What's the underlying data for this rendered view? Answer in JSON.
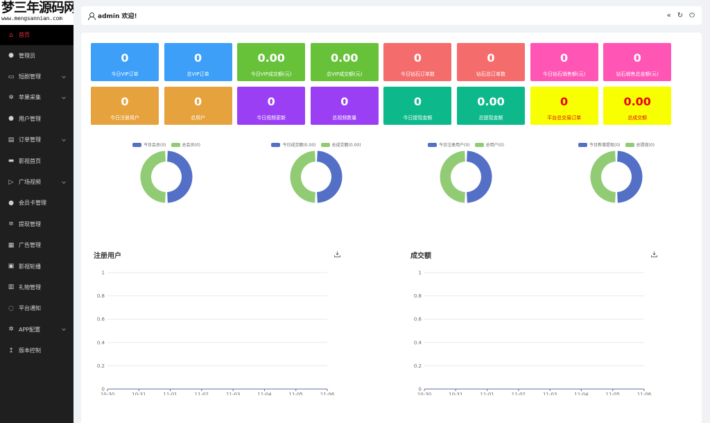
{
  "logo": {
    "line1": "梦三年源码网",
    "line2": "www.mengsannian.com"
  },
  "sidebar": {
    "items": [
      {
        "label": "首页",
        "icon": "home-icon",
        "glyph": "⌂",
        "active": true,
        "caret": false
      },
      {
        "label": "管理员",
        "icon": "user-icon",
        "glyph": "●",
        "active": false,
        "caret": false
      },
      {
        "label": "短剧管理",
        "icon": "video-icon",
        "glyph": "▭",
        "active": false,
        "caret": true
      },
      {
        "label": "苹果采集",
        "icon": "gear-icon",
        "glyph": "✲",
        "active": false,
        "caret": true
      },
      {
        "label": "用户管理",
        "icon": "user-icon",
        "glyph": "●",
        "active": false,
        "caret": false
      },
      {
        "label": "订单管理",
        "icon": "document-icon",
        "glyph": "▤",
        "active": false,
        "caret": true
      },
      {
        "label": "影视首页",
        "icon": "car-icon",
        "glyph": "▬",
        "active": false,
        "caret": false
      },
      {
        "label": "广场视频",
        "icon": "play-icon",
        "glyph": "▷",
        "active": false,
        "caret": true
      },
      {
        "label": "会员卡管理",
        "icon": "user-icon",
        "glyph": "●",
        "active": false,
        "caret": false
      },
      {
        "label": "提现管理",
        "icon": "database-icon",
        "glyph": "≡",
        "active": false,
        "caret": false
      },
      {
        "label": "广告管理",
        "icon": "chart-icon",
        "glyph": "▦",
        "active": false,
        "caret": false
      },
      {
        "label": "影视轮播",
        "icon": "image-icon",
        "glyph": "▣",
        "active": false,
        "caret": false
      },
      {
        "label": "礼物管理",
        "icon": "gift-icon",
        "glyph": "▥",
        "active": false,
        "caret": false
      },
      {
        "label": "平台通知",
        "icon": "message-icon",
        "glyph": "◌",
        "active": false,
        "caret": false
      },
      {
        "label": "APP配置",
        "icon": "settings-icon",
        "glyph": "✲",
        "active": false,
        "caret": true
      },
      {
        "label": "版本控制",
        "icon": "upload-icon",
        "glyph": "↥",
        "active": false,
        "caret": false
      }
    ]
  },
  "header": {
    "welcome": "admin 欢迎!",
    "tools": [
      {
        "name": "collapse-icon",
        "glyph": "«"
      },
      {
        "name": "refresh-icon",
        "glyph": "↻"
      },
      {
        "name": "power-icon",
        "glyph": "⏻"
      }
    ]
  },
  "stats": {
    "row1": [
      {
        "value": "0",
        "label": "今日VIP订单",
        "color": "#3d9ff8"
      },
      {
        "value": "0",
        "label": "总VIP订单",
        "color": "#3d9ff8"
      },
      {
        "value": "0.00",
        "label": "今日VIP成交额(元)",
        "color": "#67c23a"
      },
      {
        "value": "0.00",
        "label": "总VIP成交额(元)",
        "color": "#67c23a"
      },
      {
        "value": "0",
        "label": "今日钻石订单数",
        "color": "#f56c6c"
      },
      {
        "value": "0",
        "label": "钻石总订单数",
        "color": "#f56c6c"
      },
      {
        "value": "0",
        "label": "今日钻石销售额(元)",
        "color": "#ff55b4"
      },
      {
        "value": "0",
        "label": "钻石销售总金额(元)",
        "color": "#ff55b4"
      }
    ],
    "row2": [
      {
        "value": "0",
        "label": "今日注册用户",
        "color": "#e6a23c"
      },
      {
        "value": "0",
        "label": "总用户",
        "color": "#e6a23c"
      },
      {
        "value": "0",
        "label": "今日视频更新",
        "color": "#9b3ff5"
      },
      {
        "value": "0",
        "label": "总视频数量",
        "color": "#9b3ff5"
      },
      {
        "value": "0",
        "label": "今日提现金额",
        "color": "#0db98a"
      },
      {
        "value": "0.00",
        "label": "总提现金额",
        "color": "#0db98a"
      },
      {
        "value": "0",
        "label": "平台总交易订单",
        "color": "#f7ff00"
      },
      {
        "value": "0.00",
        "label": "总成交额",
        "color": "#f7ff00"
      }
    ]
  },
  "donuts": [
    {
      "legend": [
        "今日会员(0)",
        "总会员(0)"
      ]
    },
    {
      "legend": [
        "今日成交额(0.00)",
        "总成交额(0.00)"
      ]
    },
    {
      "legend": [
        "今日注册用户(0)",
        "总用户(0)"
      ]
    },
    {
      "legend": [
        "今日新增提现(0)",
        "总提现(0)"
      ]
    }
  ],
  "series_colors": [
    "#5470c6",
    "#91cc75"
  ],
  "chart_data": [
    {
      "type": "line",
      "title": "注册用户",
      "x": [
        "10-30",
        "10-31",
        "11-01",
        "11-02",
        "11-03",
        "11-04",
        "11-05",
        "11-06"
      ],
      "values": [
        0,
        0,
        0,
        0,
        0,
        0,
        0,
        0
      ],
      "yticks": [
        "0",
        "0.2",
        "0.4",
        "0.6",
        "0.8",
        "1"
      ],
      "ylim": [
        0,
        1
      ],
      "grid": true
    },
    {
      "type": "line",
      "title": "成交额",
      "x": [
        "10-30",
        "10-31",
        "11-01",
        "11-02",
        "11-03",
        "11-04",
        "11-05",
        "11-06"
      ],
      "values": [
        0,
        0,
        0,
        0,
        0,
        0,
        0,
        0
      ],
      "yticks": [
        "0",
        "0.2",
        "0.4",
        "0.6",
        "0.8",
        "1"
      ],
      "ylim": [
        0,
        1
      ],
      "grid": true
    }
  ]
}
